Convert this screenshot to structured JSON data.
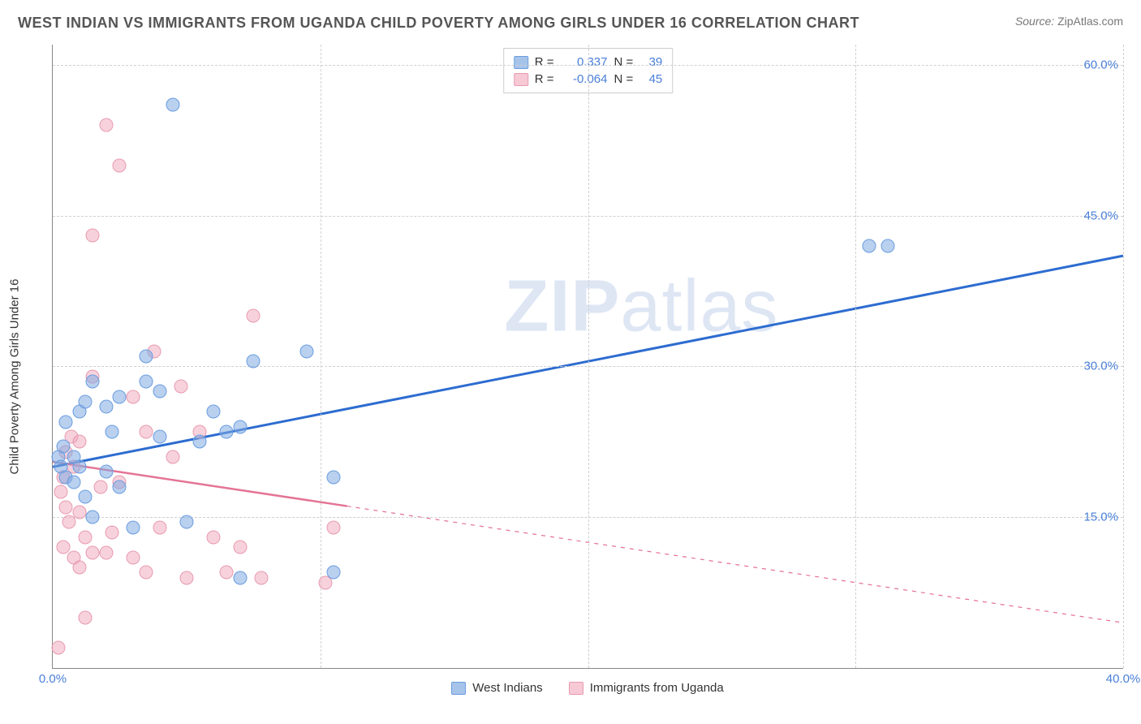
{
  "header": {
    "title": "WEST INDIAN VS IMMIGRANTS FROM UGANDA CHILD POVERTY AMONG GIRLS UNDER 16 CORRELATION CHART",
    "source_label": "Source:",
    "source_value": "ZipAtlas.com"
  },
  "chart": {
    "type": "scatter",
    "ylabel": "Child Poverty Among Girls Under 16",
    "xlim": [
      0,
      40
    ],
    "ylim": [
      0,
      62
    ],
    "xticks": [
      {
        "v": 0,
        "l": "0.0%"
      },
      {
        "v": 40,
        "l": "40.0%"
      }
    ],
    "yticks": [
      {
        "v": 15,
        "l": "15.0%"
      },
      {
        "v": 30,
        "l": "30.0%"
      },
      {
        "v": 45,
        "l": "45.0%"
      },
      {
        "v": 60,
        "l": "60.0%"
      }
    ],
    "xgrid": [
      10,
      20,
      30,
      40
    ],
    "ygrid": [
      15,
      30,
      45,
      60
    ],
    "background": "#ffffff",
    "grid_color": "#d0d0d0",
    "axis_color": "#888888",
    "marker_size": 17,
    "series": {
      "blue": {
        "label": "West Indians",
        "color": "#6a9de0",
        "fill": "rgba(128,170,225,0.55)",
        "r": 0.337,
        "n": 39,
        "trend": {
          "x1": 0,
          "y1": 20,
          "x2": 40,
          "y2": 41,
          "dash_after_x": 40,
          "stroke": "#2d6cd0",
          "width": 3
        },
        "points": [
          [
            0.2,
            21
          ],
          [
            0.3,
            20
          ],
          [
            0.4,
            22
          ],
          [
            0.5,
            19
          ],
          [
            0.5,
            24.5
          ],
          [
            0.8,
            18.5
          ],
          [
            0.8,
            21
          ],
          [
            1.0,
            20
          ],
          [
            1.0,
            25.5
          ],
          [
            1.2,
            17
          ],
          [
            1.2,
            26.5
          ],
          [
            1.5,
            15
          ],
          [
            1.5,
            28.5
          ],
          [
            2.0,
            19.5
          ],
          [
            2.0,
            26
          ],
          [
            2.2,
            23.5
          ],
          [
            2.5,
            18
          ],
          [
            2.5,
            27
          ],
          [
            3.0,
            14
          ],
          [
            3.5,
            31
          ],
          [
            3.5,
            28.5
          ],
          [
            4.0,
            23
          ],
          [
            4.0,
            27.5
          ],
          [
            4.5,
            56
          ],
          [
            5.0,
            14.5
          ],
          [
            5.5,
            22.5
          ],
          [
            6.0,
            25.5
          ],
          [
            6.5,
            23.5
          ],
          [
            7.0,
            9
          ],
          [
            7.0,
            24
          ],
          [
            7.5,
            30.5
          ],
          [
            9.5,
            31.5
          ],
          [
            10.5,
            9.5
          ],
          [
            10.5,
            19
          ],
          [
            30.5,
            42
          ],
          [
            31.2,
            42
          ]
        ]
      },
      "pink": {
        "label": "Immigrants from Uganda",
        "color": "#e89ab0",
        "fill": "rgba(240,165,185,0.5)",
        "r": -0.064,
        "n": 45,
        "trend": {
          "x1": 0,
          "y1": 20.5,
          "x2": 40,
          "y2": 4.5,
          "dash_after_x": 11,
          "stroke": "#e47496",
          "width": 2.5
        },
        "points": [
          [
            0.2,
            2
          ],
          [
            0.3,
            17.5
          ],
          [
            0.4,
            19
          ],
          [
            0.4,
            12
          ],
          [
            0.5,
            16
          ],
          [
            0.5,
            21.5
          ],
          [
            0.6,
            14.5
          ],
          [
            0.7,
            23
          ],
          [
            0.8,
            11
          ],
          [
            0.8,
            20
          ],
          [
            1.0,
            10
          ],
          [
            1.0,
            15.5
          ],
          [
            1.0,
            22.5
          ],
          [
            1.2,
            5
          ],
          [
            1.2,
            13
          ],
          [
            1.5,
            43
          ],
          [
            1.5,
            11.5
          ],
          [
            1.5,
            29
          ],
          [
            1.8,
            18
          ],
          [
            2.0,
            11.5
          ],
          [
            2.0,
            54
          ],
          [
            2.2,
            13.5
          ],
          [
            2.5,
            18.5
          ],
          [
            2.5,
            50
          ],
          [
            3.0,
            11
          ],
          [
            3.0,
            27
          ],
          [
            3.5,
            9.5
          ],
          [
            3.5,
            23.5
          ],
          [
            3.8,
            31.5
          ],
          [
            4.0,
            14
          ],
          [
            4.5,
            21
          ],
          [
            4.8,
            28
          ],
          [
            5.0,
            9
          ],
          [
            5.5,
            23.5
          ],
          [
            6.0,
            13
          ],
          [
            6.5,
            9.5
          ],
          [
            7.0,
            12
          ],
          [
            7.5,
            35
          ],
          [
            7.8,
            9
          ],
          [
            10.2,
            8.5
          ],
          [
            10.5,
            14
          ]
        ]
      }
    },
    "legend_top": {
      "r_label": "R =",
      "n_label": "N ="
    },
    "watermark": {
      "zip": "ZIP",
      "rest": "atlas"
    }
  }
}
